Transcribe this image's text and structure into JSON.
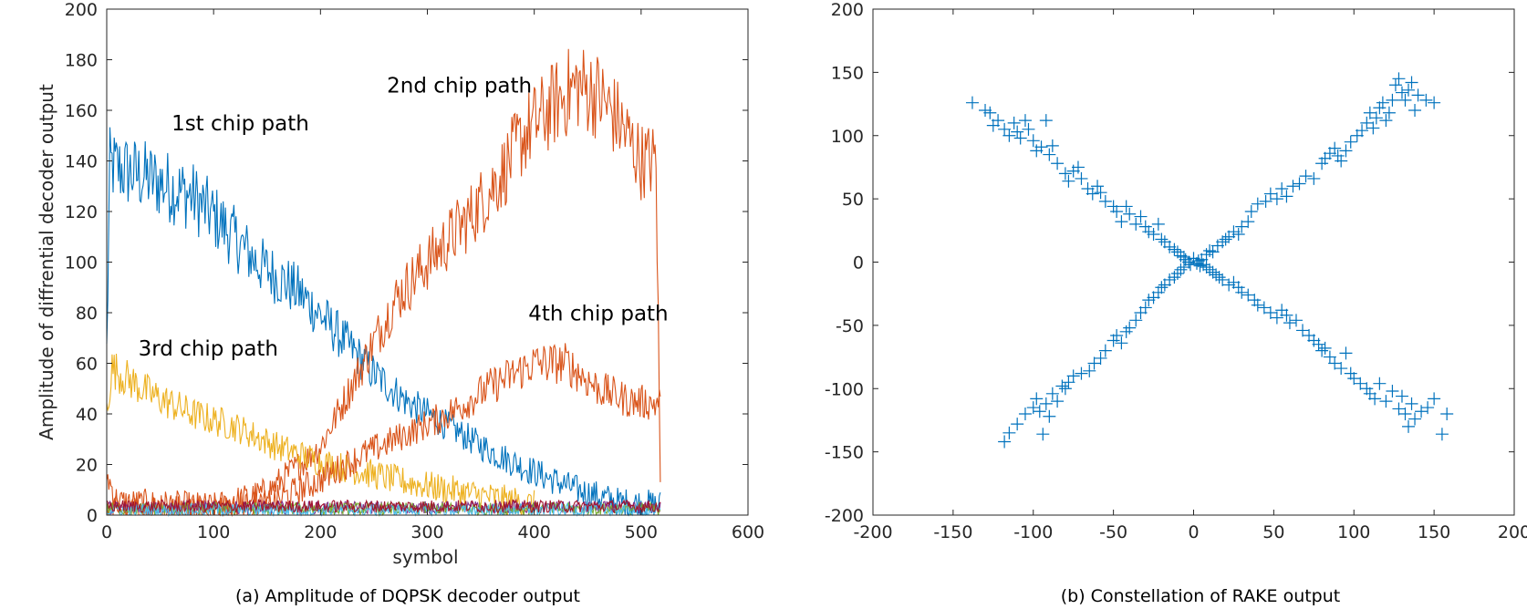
{
  "chart_data": [
    {
      "type": "line",
      "caption": "(a) Amplitude of DQPSK decoder output",
      "xlabel": "symbol",
      "ylabel": "Amplitude of diffrential decoder output",
      "xlim": [
        0,
        600
      ],
      "ylim": [
        0,
        200
      ],
      "xticks": [
        0,
        100,
        200,
        300,
        400,
        500,
        600
      ],
      "yticks": [
        0,
        20,
        40,
        60,
        80,
        100,
        120,
        140,
        160,
        180,
        200
      ],
      "grid": false,
      "annotations": [
        {
          "text": "1st chip path",
          "x": 125,
          "y": 152
        },
        {
          "text": "2nd chip path",
          "x": 330,
          "y": 167
        },
        {
          "text": "3rd chip path",
          "x": 95,
          "y": 63
        },
        {
          "text": "4th chip path",
          "x": 460,
          "y": 77
        }
      ],
      "series": [
        {
          "color": "#0072BD",
          "x_end": 518,
          "trend": [
            [
              0,
              65
            ],
            [
              3,
              138
            ],
            [
              40,
              133
            ],
            [
              80,
              126
            ],
            [
              110,
              114
            ],
            [
              140,
              100
            ],
            [
              180,
              88
            ],
            [
              220,
              70
            ],
            [
              250,
              56
            ],
            [
              280,
              45
            ],
            [
              320,
              35
            ],
            [
              360,
              25
            ],
            [
              400,
              17
            ],
            [
              440,
              10
            ],
            [
              480,
              5
            ],
            [
              518,
              4
            ]
          ]
        },
        {
          "color": "#D95319",
          "x_end": 518,
          "trend": [
            [
              0,
              16
            ],
            [
              10,
              5
            ],
            [
              100,
              3
            ],
            [
              150,
              9
            ],
            [
              200,
              27
            ],
            [
              240,
              60
            ],
            [
              270,
              85
            ],
            [
              300,
              100
            ],
            [
              340,
              118
            ],
            [
              370,
              135
            ],
            [
              390,
              150
            ],
            [
              420,
              163
            ],
            [
              440,
              170
            ],
            [
              460,
              166
            ],
            [
              480,
              155
            ],
            [
              500,
              140
            ],
            [
              514,
              140
            ],
            [
              518,
              13
            ]
          ]
        },
        {
          "color": "#EDB120",
          "x_end": 400,
          "trend": [
            [
              0,
              42
            ],
            [
              5,
              58
            ],
            [
              40,
              48
            ],
            [
              80,
              40
            ],
            [
              120,
              35
            ],
            [
              160,
              27
            ],
            [
              200,
              21
            ],
            [
              240,
              17
            ],
            [
              280,
              13
            ],
            [
              320,
              10
            ],
            [
              360,
              7
            ],
            [
              400,
              4
            ]
          ]
        },
        {
          "color": "#D95319",
          "x_end": 518,
          "trend": [
            [
              0,
              2
            ],
            [
              100,
              2
            ],
            [
              150,
              4
            ],
            [
              200,
              14
            ],
            [
              240,
              24
            ],
            [
              280,
              32
            ],
            [
              320,
              40
            ],
            [
              360,
              51
            ],
            [
              400,
              60
            ],
            [
              430,
              60
            ],
            [
              460,
              50
            ],
            [
              490,
              45
            ],
            [
              518,
              44
            ]
          ]
        },
        {
          "color": "#7E2F8E",
          "x_end": 518,
          "trend": [
            [
              0,
              3
            ],
            [
              518,
              3
            ]
          ]
        },
        {
          "color": "#77AC30",
          "x_end": 518,
          "trend": [
            [
              0,
              2.5
            ],
            [
              518,
              2.5
            ]
          ]
        },
        {
          "color": "#4DBEEE",
          "x_end": 518,
          "trend": [
            [
              0,
              2
            ],
            [
              518,
              2
            ]
          ]
        },
        {
          "color": "#A2142F",
          "x_end": 518,
          "trend": [
            [
              0,
              3.5
            ],
            [
              518,
              3.5
            ]
          ]
        }
      ]
    },
    {
      "type": "scatter",
      "caption": "(b) Constellation of RAKE output",
      "marker": "+",
      "color": "#0072BD",
      "xlim": [
        -200,
        200
      ],
      "ylim": [
        -200,
        200
      ],
      "xticks": [
        -200,
        -150,
        -100,
        -50,
        0,
        50,
        100,
        150,
        200
      ],
      "yticks": [
        -200,
        -150,
        -100,
        -50,
        0,
        50,
        100,
        150,
        200
      ],
      "grid": false,
      "points": [
        [
          -138,
          126
        ],
        [
          -130,
          120
        ],
        [
          -127,
          118
        ],
        [
          -125,
          108
        ],
        [
          -122,
          112
        ],
        [
          -118,
          105
        ],
        [
          -115,
          100
        ],
        [
          -112,
          110
        ],
        [
          -110,
          103
        ],
        [
          -108,
          98
        ],
        [
          -105,
          112
        ],
        [
          -103,
          105
        ],
        [
          -100,
          96
        ],
        [
          -98,
          88
        ],
        [
          -95,
          91
        ],
        [
          -92,
          112
        ],
        [
          -90,
          85
        ],
        [
          -88,
          92
        ],
        [
          -85,
          78
        ],
        [
          -80,
          70
        ],
        [
          -78,
          64
        ],
        [
          -75,
          72
        ],
        [
          -72,
          75
        ],
        [
          -70,
          66
        ],
        [
          -66,
          58
        ],
        [
          -63,
          54
        ],
        [
          -60,
          60
        ],
        [
          -58,
          55
        ],
        [
          -55,
          48
        ],
        [
          -50,
          44
        ],
        [
          -48,
          40
        ],
        [
          -45,
          32
        ],
        [
          -42,
          44
        ],
        [
          -40,
          38
        ],
        [
          -36,
          30
        ],
        [
          -33,
          36
        ],
        [
          -30,
          28
        ],
        [
          -28,
          24
        ],
        [
          -25,
          22
        ],
        [
          -22,
          30
        ],
        [
          -20,
          18
        ],
        [
          -18,
          16
        ],
        [
          -15,
          12
        ],
        [
          -12,
          10
        ],
        [
          -10,
          8
        ],
        [
          -8,
          5
        ],
        [
          -6,
          4
        ],
        [
          -5,
          2
        ],
        [
          -3,
          0
        ],
        [
          -2,
          -2
        ],
        [
          0,
          3
        ],
        [
          2,
          -1
        ],
        [
          3,
          1
        ],
        [
          4,
          -3
        ],
        [
          5,
          2
        ],
        [
          6,
          -2
        ],
        [
          8,
          -4
        ],
        [
          10,
          -6
        ],
        [
          12,
          -8
        ],
        [
          14,
          -10
        ],
        [
          16,
          -12
        ],
        [
          18,
          -14
        ],
        [
          22,
          -18
        ],
        [
          25,
          -16
        ],
        [
          28,
          -20
        ],
        [
          30,
          -24
        ],
        [
          34,
          -26
        ],
        [
          38,
          -30
        ],
        [
          40,
          -34
        ],
        [
          44,
          -36
        ],
        [
          48,
          -40
        ],
        [
          52,
          -44
        ],
        [
          55,
          -38
        ],
        [
          58,
          -42
        ],
        [
          60,
          -48
        ],
        [
          64,
          -46
        ],
        [
          68,
          -54
        ],
        [
          72,
          -58
        ],
        [
          75,
          -62
        ],
        [
          78,
          -65
        ],
        [
          80,
          -70
        ],
        [
          82,
          -68
        ],
        [
          85,
          -75
        ],
        [
          88,
          -80
        ],
        [
          92,
          -84
        ],
        [
          95,
          -72
        ],
        [
          98,
          -88
        ],
        [
          100,
          -92
        ],
        [
          104,
          -96
        ],
        [
          108,
          -100
        ],
        [
          110,
          -104
        ],
        [
          113,
          -108
        ],
        [
          116,
          -96
        ],
        [
          120,
          -110
        ],
        [
          124,
          -102
        ],
        [
          128,
          -116
        ],
        [
          130,
          -106
        ],
        [
          132,
          -120
        ],
        [
          134,
          -130
        ],
        [
          136,
          -112
        ],
        [
          138,
          -124
        ],
        [
          142,
          -118
        ],
        [
          146,
          -115
        ],
        [
          150,
          -108
        ],
        [
          155,
          -136
        ],
        [
          158,
          -120
        ],
        [
          -118,
          -142
        ],
        [
          -115,
          -135
        ],
        [
          -110,
          -128
        ],
        [
          -105,
          -120
        ],
        [
          -100,
          -115
        ],
        [
          -98,
          -108
        ],
        [
          -96,
          -118
        ],
        [
          -94,
          -136
        ],
        [
          -92,
          -112
        ],
        [
          -90,
          -122
        ],
        [
          -88,
          -104
        ],
        [
          -85,
          -110
        ],
        [
          -82,
          -98
        ],
        [
          -80,
          -100
        ],
        [
          -78,
          -95
        ],
        [
          -75,
          -90
        ],
        [
          -70,
          -88
        ],
        [
          -65,
          -86
        ],
        [
          -62,
          -80
        ],
        [
          -58,
          -76
        ],
        [
          -55,
          -70
        ],
        [
          -50,
          -62
        ],
        [
          -48,
          -58
        ],
        [
          -45,
          -64
        ],
        [
          -42,
          -55
        ],
        [
          -40,
          -52
        ],
        [
          -36,
          -46
        ],
        [
          -33,
          -40
        ],
        [
          -30,
          -36
        ],
        [
          -28,
          -30
        ],
        [
          -25,
          -28
        ],
        [
          -22,
          -24
        ],
        [
          -20,
          -20
        ],
        [
          -18,
          -18
        ],
        [
          -15,
          -14
        ],
        [
          -12,
          -12
        ],
        [
          -10,
          -9
        ],
        [
          -8,
          -6
        ],
        [
          -6,
          -4
        ],
        [
          8,
          6
        ],
        [
          10,
          9
        ],
        [
          12,
          8
        ],
        [
          15,
          13
        ],
        [
          18,
          16
        ],
        [
          20,
          18
        ],
        [
          22,
          20
        ],
        [
          25,
          24
        ],
        [
          28,
          22
        ],
        [
          30,
          28
        ],
        [
          34,
          32
        ],
        [
          36,
          40
        ],
        [
          40,
          46
        ],
        [
          45,
          48
        ],
        [
          48,
          54
        ],
        [
          52,
          50
        ],
        [
          55,
          58
        ],
        [
          58,
          52
        ],
        [
          62,
          60
        ],
        [
          66,
          62
        ],
        [
          70,
          68
        ],
        [
          75,
          66
        ],
        [
          80,
          78
        ],
        [
          82,
          82
        ],
        [
          85,
          86
        ],
        [
          88,
          90
        ],
        [
          90,
          84
        ],
        [
          92,
          80
        ],
        [
          95,
          88
        ],
        [
          98,
          95
        ],
        [
          102,
          100
        ],
        [
          105,
          104
        ],
        [
          108,
          110
        ],
        [
          110,
          118
        ],
        [
          112,
          106
        ],
        [
          114,
          114
        ],
        [
          116,
          122
        ],
        [
          118,
          126
        ],
        [
          120,
          112
        ],
        [
          122,
          118
        ],
        [
          124,
          128
        ],
        [
          126,
          140
        ],
        [
          128,
          145
        ],
        [
          130,
          134
        ],
        [
          132,
          128
        ],
        [
          134,
          136
        ],
        [
          136,
          142
        ],
        [
          138,
          120
        ],
        [
          140,
          132
        ],
        [
          145,
          128
        ],
        [
          150,
          126
        ]
      ]
    }
  ]
}
